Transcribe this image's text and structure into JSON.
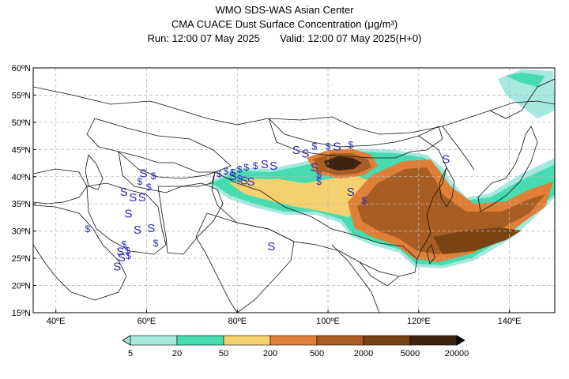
{
  "header": {
    "title": "WMO SDS-WAS Asian Center",
    "subtitle": "CMA CUACE Dust Surface Concentration (μg/m³)",
    "run_label": "Run: 12:00 07 May 2025",
    "valid_label": "Valid: 12:00 07 May 2025(H+0)"
  },
  "map": {
    "lon_range": [
      35,
      150
    ],
    "lat_range": [
      15,
      60
    ],
    "lat_ticks": [
      "15ºN",
      "20ºN",
      "25ºN",
      "30ºN",
      "35ºN",
      "40ºN",
      "45ºN",
      "50ºN",
      "55ºN",
      "60ºN"
    ],
    "lat_values": [
      15,
      20,
      25,
      30,
      35,
      40,
      45,
      50,
      55,
      60
    ],
    "lon_ticks": [
      "40ºE",
      "60ºE",
      "80ºE",
      "100ºE",
      "120ºE",
      "140ºE"
    ],
    "lon_values": [
      40,
      60,
      80,
      100,
      120,
      140
    ],
    "gridlines": true,
    "weather_symbol": "S",
    "weather_symbol_alt": "$",
    "symbol_color": "#2a2ab8"
  },
  "legend": {
    "labels": [
      "5",
      "20",
      "50",
      "200",
      "500",
      "2000",
      "5000",
      "20000"
    ],
    "colors": [
      "#a6e8df",
      "#46dcb0",
      "#f5d06e",
      "#df7f38",
      "#a85e22",
      "#7a4314",
      "#3d2410"
    ]
  }
}
